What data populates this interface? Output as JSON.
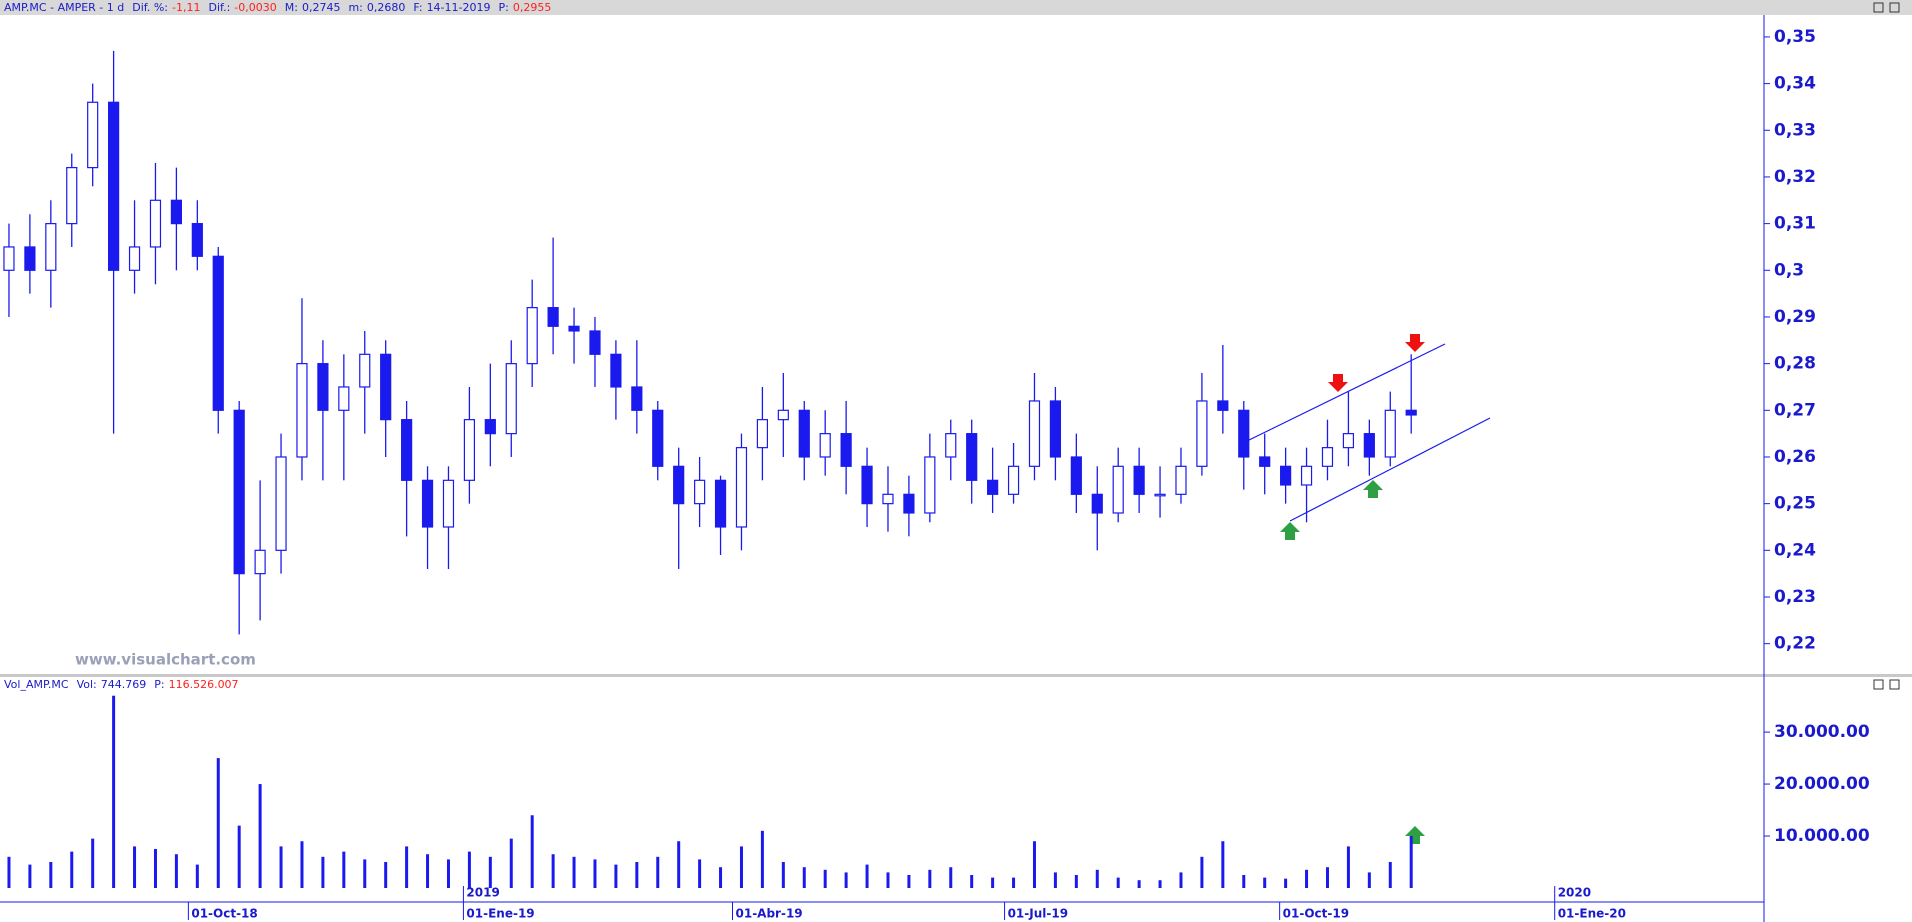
{
  "header": {
    "symbol": "AMP.MC - AMPER - 1 d",
    "fields": [
      {
        "label": "Dif. %:",
        "value": "-1,11",
        "color": "#ff2020"
      },
      {
        "label": "Dif.:",
        "value": "-0,0030",
        "color": "#ff2020"
      },
      {
        "label": "M:",
        "value": "0,2745",
        "color": "#1a1acc"
      },
      {
        "label": "m:",
        "value": "0,2680",
        "color": "#1a1acc"
      },
      {
        "label": "F:",
        "value": "14-11-2019",
        "color": "#1a1acc"
      },
      {
        "label": "P:",
        "value": "0,2955",
        "color": "#ff2020"
      }
    ]
  },
  "volume_header": {
    "symbol": "Vol_AMP.MC",
    "fields": [
      {
        "label": "Vol:",
        "value": "744.769",
        "color": "#1a1acc"
      },
      {
        "label": "P:",
        "value": "116.526.007",
        "color": "#ff2020"
      }
    ]
  },
  "chart_data": [
    {
      "type": "candlestick",
      "watermark": "www.visualchart.com",
      "color": "#1a1aee",
      "x": [
        "2018-08-02",
        "2018-08-09",
        "2018-08-16",
        "2018-08-23",
        "2018-08-30",
        "2018-09-06",
        "2018-09-13",
        "2018-09-20",
        "2018-09-27",
        "2018-10-04",
        "2018-10-11",
        "2018-10-18",
        "2018-10-25",
        "2018-11-01",
        "2018-11-08",
        "2018-11-15",
        "2018-11-22",
        "2018-11-29",
        "2018-12-06",
        "2018-12-13",
        "2018-12-20",
        "2018-12-27",
        "2019-01-03",
        "2019-01-10",
        "2019-01-17",
        "2019-01-24",
        "2019-01-31",
        "2019-02-07",
        "2019-02-14",
        "2019-02-21",
        "2019-02-28",
        "2019-03-07",
        "2019-03-14",
        "2019-03-21",
        "2019-03-28",
        "2019-04-04",
        "2019-04-11",
        "2019-04-18",
        "2019-04-25",
        "2019-05-02",
        "2019-05-09",
        "2019-05-16",
        "2019-05-23",
        "2019-05-30",
        "2019-06-06",
        "2019-06-13",
        "2019-06-20",
        "2019-06-27",
        "2019-07-04",
        "2019-07-11",
        "2019-07-18",
        "2019-07-25",
        "2019-08-01",
        "2019-08-08",
        "2019-08-15",
        "2019-08-22",
        "2019-08-29",
        "2019-09-05",
        "2019-09-12",
        "2019-09-19",
        "2019-09-26",
        "2019-10-03",
        "2019-10-10",
        "2019-10-17",
        "2019-10-24",
        "2019-10-31",
        "2019-11-07",
        "2019-11-14"
      ],
      "open": [
        0.3,
        0.305,
        0.3,
        0.31,
        0.322,
        0.336,
        0.3,
        0.305,
        0.315,
        0.31,
        0.303,
        0.27,
        0.235,
        0.24,
        0.26,
        0.28,
        0.27,
        0.275,
        0.282,
        0.268,
        0.255,
        0.245,
        0.255,
        0.268,
        0.265,
        0.28,
        0.292,
        0.288,
        0.287,
        0.282,
        0.275,
        0.27,
        0.258,
        0.25,
        0.255,
        0.245,
        0.262,
        0.268,
        0.27,
        0.26,
        0.265,
        0.258,
        0.25,
        0.252,
        0.248,
        0.26,
        0.265,
        0.255,
        0.252,
        0.258,
        0.272,
        0.26,
        0.252,
        0.248,
        0.258,
        0.252,
        0.252,
        0.258,
        0.272,
        0.27,
        0.26,
        0.258,
        0.254,
        0.258,
        0.262,
        0.265,
        0.26,
        0.27
      ],
      "high": [
        0.31,
        0.312,
        0.315,
        0.325,
        0.34,
        0.347,
        0.315,
        0.323,
        0.322,
        0.315,
        0.305,
        0.272,
        0.255,
        0.265,
        0.294,
        0.285,
        0.282,
        0.287,
        0.285,
        0.272,
        0.258,
        0.258,
        0.275,
        0.28,
        0.285,
        0.298,
        0.307,
        0.292,
        0.29,
        0.285,
        0.285,
        0.272,
        0.262,
        0.26,
        0.256,
        0.265,
        0.275,
        0.278,
        0.272,
        0.27,
        0.272,
        0.262,
        0.258,
        0.256,
        0.265,
        0.268,
        0.268,
        0.262,
        0.263,
        0.278,
        0.275,
        0.265,
        0.258,
        0.262,
        0.262,
        0.258,
        0.262,
        0.278,
        0.284,
        0.272,
        0.265,
        0.262,
        0.262,
        0.268,
        0.274,
        0.268,
        0.274,
        0.282
      ],
      "low": [
        0.29,
        0.295,
        0.292,
        0.305,
        0.318,
        0.265,
        0.295,
        0.297,
        0.3,
        0.3,
        0.265,
        0.222,
        0.225,
        0.235,
        0.255,
        0.255,
        0.255,
        0.265,
        0.26,
        0.243,
        0.236,
        0.236,
        0.25,
        0.258,
        0.26,
        0.275,
        0.282,
        0.28,
        0.275,
        0.268,
        0.265,
        0.255,
        0.236,
        0.245,
        0.239,
        0.24,
        0.255,
        0.26,
        0.255,
        0.256,
        0.252,
        0.245,
        0.244,
        0.243,
        0.246,
        0.255,
        0.25,
        0.248,
        0.25,
        0.255,
        0.255,
        0.248,
        0.24,
        0.246,
        0.248,
        0.247,
        0.25,
        0.256,
        0.265,
        0.253,
        0.252,
        0.25,
        0.246,
        0.255,
        0.258,
        0.256,
        0.258,
        0.265
      ],
      "close": [
        0.305,
        0.3,
        0.31,
        0.322,
        0.336,
        0.3,
        0.305,
        0.315,
        0.31,
        0.303,
        0.27,
        0.235,
        0.24,
        0.26,
        0.28,
        0.27,
        0.275,
        0.282,
        0.268,
        0.255,
        0.245,
        0.255,
        0.268,
        0.265,
        0.28,
        0.292,
        0.288,
        0.287,
        0.282,
        0.275,
        0.27,
        0.258,
        0.25,
        0.255,
        0.245,
        0.262,
        0.268,
        0.27,
        0.26,
        0.265,
        0.258,
        0.25,
        0.252,
        0.248,
        0.26,
        0.265,
        0.255,
        0.252,
        0.258,
        0.272,
        0.26,
        0.252,
        0.248,
        0.258,
        0.252,
        0.252,
        0.258,
        0.272,
        0.27,
        0.26,
        0.258,
        0.254,
        0.258,
        0.262,
        0.265,
        0.26,
        0.27,
        0.269
      ],
      "xlim": [
        "2018-07-30",
        "2020-03-11"
      ],
      "ylim": [
        0.2135,
        0.3547
      ],
      "yticks": [
        {
          "value": 0.22,
          "label": "0,22"
        },
        {
          "value": 0.23,
          "label": "0,23"
        },
        {
          "value": 0.24,
          "label": "0,24"
        },
        {
          "value": 0.25,
          "label": "0,25"
        },
        {
          "value": 0.26,
          "label": "0,26"
        },
        {
          "value": 0.27,
          "label": "0,27"
        },
        {
          "value": 0.28,
          "label": "0,28"
        },
        {
          "value": 0.29,
          "label": "0,29"
        },
        {
          "value": 0.3,
          "label": "0,3"
        },
        {
          "value": 0.31,
          "label": "0,31"
        },
        {
          "value": 0.32,
          "label": "0,32"
        },
        {
          "value": 0.33,
          "label": "0,33"
        },
        {
          "value": 0.34,
          "label": "0,34"
        },
        {
          "value": 0.35,
          "label": "0,35"
        }
      ]
    },
    {
      "type": "bar",
      "color": "#1a1aee",
      "x": [
        "2018-08-02",
        "2018-08-09",
        "2018-08-16",
        "2018-08-23",
        "2018-08-30",
        "2018-09-06",
        "2018-09-13",
        "2018-09-20",
        "2018-09-27",
        "2018-10-04",
        "2018-10-11",
        "2018-10-18",
        "2018-10-25",
        "2018-11-01",
        "2018-11-08",
        "2018-11-15",
        "2018-11-22",
        "2018-11-29",
        "2018-12-06",
        "2018-12-13",
        "2018-12-20",
        "2018-12-27",
        "2019-01-03",
        "2019-01-10",
        "2019-01-17",
        "2019-01-24",
        "2019-01-31",
        "2019-02-07",
        "2019-02-14",
        "2019-02-21",
        "2019-02-28",
        "2019-03-07",
        "2019-03-14",
        "2019-03-21",
        "2019-03-28",
        "2019-04-04",
        "2019-04-11",
        "2019-04-18",
        "2019-04-25",
        "2019-05-02",
        "2019-05-09",
        "2019-05-16",
        "2019-05-23",
        "2019-05-30",
        "2019-06-06",
        "2019-06-13",
        "2019-06-20",
        "2019-06-27",
        "2019-07-04",
        "2019-07-11",
        "2019-07-18",
        "2019-07-25",
        "2019-08-01",
        "2019-08-08",
        "2019-08-15",
        "2019-08-22",
        "2019-08-29",
        "2019-09-05",
        "2019-09-12",
        "2019-09-19",
        "2019-09-26",
        "2019-10-03",
        "2019-10-10",
        "2019-10-17",
        "2019-10-24",
        "2019-10-31",
        "2019-11-07",
        "2019-11-14"
      ],
      "values": [
        6000,
        4500,
        5000,
        7000,
        9500,
        37000,
        8000,
        7500,
        6500,
        4500,
        25000,
        12000,
        20000,
        8000,
        9000,
        6000,
        7000,
        5500,
        5000,
        8000,
        6500,
        5500,
        7000,
        6000,
        9500,
        14000,
        6500,
        6000,
        5500,
        4500,
        5000,
        6000,
        9000,
        5500,
        4000,
        8000,
        11000,
        5000,
        4000,
        3500,
        3000,
        4500,
        3000,
        2500,
        3500,
        4000,
        2500,
        2000,
        2000,
        9000,
        3000,
        2500,
        3500,
        2000,
        1500,
        1500,
        3000,
        6000,
        9000,
        2500,
        2000,
        1800,
        3500,
        4000,
        8000,
        3000,
        5000,
        10000
      ],
      "xlim": [
        "2018-07-30",
        "2020-03-11"
      ],
      "ylim": [
        0,
        38100
      ],
      "yticks": [
        {
          "value": 10000,
          "label": "10.000.00"
        },
        {
          "value": 20000,
          "label": "20.000.00"
        },
        {
          "value": 30000,
          "label": "30.000.00"
        }
      ],
      "xticks": [
        {
          "value": "2018-10-01",
          "label": "01-Oct-18"
        },
        {
          "value": "2019-01-01",
          "label": "01-Ene-19"
        },
        {
          "value": "2019-04-01",
          "label": "01-Abr-19"
        },
        {
          "value": "2019-07-01",
          "label": "01-Jul-19"
        },
        {
          "value": "2019-10-01",
          "label": "01-Oct-19"
        },
        {
          "value": "2020-01-01",
          "label": "01-Ene-20"
        }
      ],
      "year_ticks": [
        {
          "value": "2019-01-01",
          "label": "2019"
        },
        {
          "value": "2020-01-01",
          "label": "2020"
        }
      ]
    }
  ]
}
